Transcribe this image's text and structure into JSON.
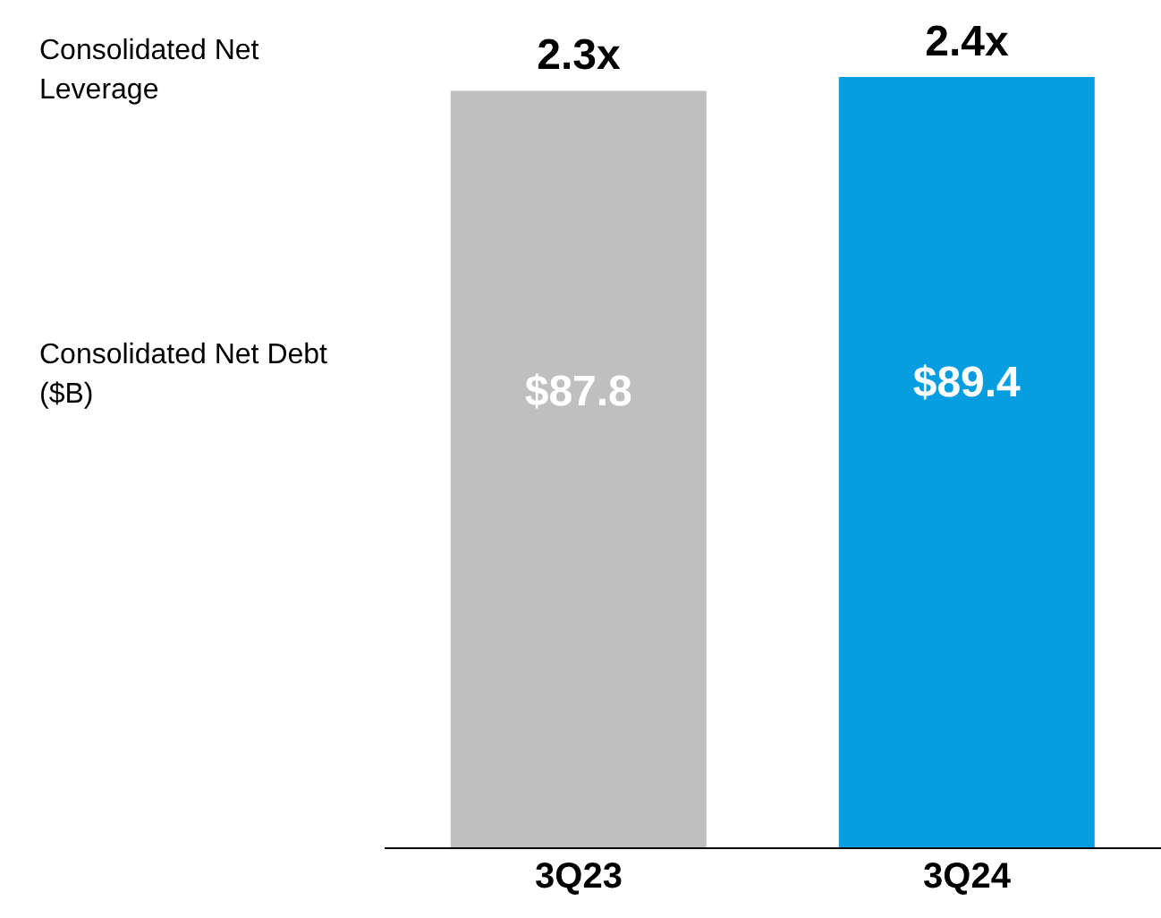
{
  "chart_data": {
    "type": "bar",
    "categories": [
      "3Q23",
      "3Q24"
    ],
    "values": [
      87.8,
      89.4
    ],
    "colors": [
      "#bfbfbf",
      "#079ee1"
    ],
    "value_labels": [
      "$87.8",
      "$89.4"
    ],
    "annotations": [
      "Consolidated Net Leverage",
      "Consolidated Net Debt ($B)",
      {
        "text": "2.3x",
        "x": "3Q23",
        "y": 87.8
      },
      {
        "text": "2.4x",
        "x": "3Q24",
        "y": 89.4
      }
    ]
  }
}
